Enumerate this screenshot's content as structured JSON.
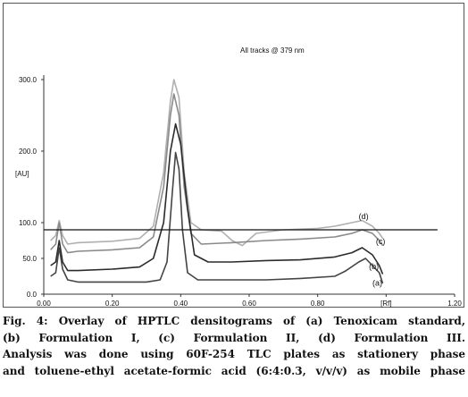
{
  "chart_data": {
    "type": "line",
    "annotation": "All tracks @ 379 nm",
    "ylabel": "[AU]",
    "xlabel": "[Rf]",
    "xlim": [
      0.0,
      1.2
    ],
    "ylim": [
      0,
      300
    ],
    "x_ticks": [
      0.0,
      0.2,
      0.4,
      0.6,
      0.8,
      1.0,
      1.2
    ],
    "x_tick_labels": [
      "0.00",
      "0.20",
      "0.40",
      "0.60",
      "0.80",
      "",
      "1.20"
    ],
    "y_ticks": [
      0,
      50,
      100,
      200,
      300
    ],
    "y_tick_labels": [
      "0.0",
      "50.0",
      "100.0",
      "200.0",
      "300.0"
    ],
    "hline_y": 90,
    "series": [
      {
        "name": "(a)",
        "color": "#444444",
        "points": [
          [
            0.02,
            25
          ],
          [
            0.035,
            30
          ],
          [
            0.045,
            65
          ],
          [
            0.055,
            35
          ],
          [
            0.07,
            20
          ],
          [
            0.1,
            17
          ],
          [
            0.2,
            17
          ],
          [
            0.3,
            17
          ],
          [
            0.34,
            20
          ],
          [
            0.36,
            45
          ],
          [
            0.375,
            140
          ],
          [
            0.385,
            198
          ],
          [
            0.395,
            175
          ],
          [
            0.405,
            90
          ],
          [
            0.42,
            30
          ],
          [
            0.45,
            20
          ],
          [
            0.55,
            20
          ],
          [
            0.65,
            20
          ],
          [
            0.75,
            22
          ],
          [
            0.85,
            25
          ],
          [
            0.88,
            32
          ],
          [
            0.92,
            45
          ],
          [
            0.94,
            50
          ],
          [
            0.96,
            40
          ],
          [
            0.98,
            30
          ],
          [
            0.99,
            15
          ]
        ]
      },
      {
        "name": "(b)",
        "color": "#2b2b2b",
        "points": [
          [
            0.02,
            40
          ],
          [
            0.035,
            45
          ],
          [
            0.045,
            75
          ],
          [
            0.055,
            45
          ],
          [
            0.07,
            33
          ],
          [
            0.1,
            33
          ],
          [
            0.2,
            35
          ],
          [
            0.28,
            38
          ],
          [
            0.32,
            50
          ],
          [
            0.35,
            100
          ],
          [
            0.37,
            200
          ],
          [
            0.385,
            238
          ],
          [
            0.4,
            210
          ],
          [
            0.42,
            120
          ],
          [
            0.44,
            55
          ],
          [
            0.48,
            45
          ],
          [
            0.55,
            45
          ],
          [
            0.65,
            47
          ],
          [
            0.75,
            48
          ],
          [
            0.85,
            52
          ],
          [
            0.9,
            58
          ],
          [
            0.93,
            65
          ],
          [
            0.96,
            55
          ],
          [
            0.98,
            40
          ],
          [
            0.99,
            28
          ]
        ]
      },
      {
        "name": "(c)",
        "color": "#8a8a8a",
        "points": [
          [
            0.02,
            62
          ],
          [
            0.035,
            70
          ],
          [
            0.045,
            100
          ],
          [
            0.055,
            70
          ],
          [
            0.07,
            58
          ],
          [
            0.1,
            60
          ],
          [
            0.2,
            62
          ],
          [
            0.28,
            65
          ],
          [
            0.32,
            80
          ],
          [
            0.35,
            150
          ],
          [
            0.37,
            250
          ],
          [
            0.38,
            280
          ],
          [
            0.395,
            250
          ],
          [
            0.41,
            150
          ],
          [
            0.43,
            85
          ],
          [
            0.46,
            70
          ],
          [
            0.55,
            72
          ],
          [
            0.65,
            75
          ],
          [
            0.75,
            77
          ],
          [
            0.85,
            80
          ],
          [
            0.9,
            85
          ],
          [
            0.93,
            90
          ],
          [
            0.96,
            85
          ],
          [
            0.98,
            75
          ],
          [
            0.99,
            68
          ]
        ]
      },
      {
        "name": "(d)",
        "color": "#b0b0b0",
        "points": [
          [
            0.02,
            75
          ],
          [
            0.035,
            82
          ],
          [
            0.045,
            103
          ],
          [
            0.055,
            82
          ],
          [
            0.07,
            70
          ],
          [
            0.1,
            72
          ],
          [
            0.2,
            74
          ],
          [
            0.28,
            78
          ],
          [
            0.32,
            95
          ],
          [
            0.35,
            170
          ],
          [
            0.37,
            270
          ],
          [
            0.38,
            300
          ],
          [
            0.395,
            275
          ],
          [
            0.41,
            170
          ],
          [
            0.43,
            100
          ],
          [
            0.46,
            90
          ],
          [
            0.52,
            88
          ],
          [
            0.55,
            75
          ],
          [
            0.58,
            68
          ],
          [
            0.62,
            85
          ],
          [
            0.7,
            90
          ],
          [
            0.8,
            92
          ],
          [
            0.85,
            95
          ],
          [
            0.9,
            100
          ],
          [
            0.93,
            103
          ],
          [
            0.96,
            95
          ],
          [
            0.98,
            85
          ],
          [
            0.99,
            78
          ]
        ]
      }
    ]
  },
  "caption": {
    "fig_label": "Fig. 4:",
    "line1_rest": " Overlay of HPTLC densitograms of (a) Tenoxicam standard,",
    "line2": "(b) Formulation I, (c) Formulation II, (d) Formulation III.",
    "line3": "Analysis was done using 60F-254 TLC plates as stationery phase",
    "line4": "and toluene-ethyl acetate-formic acid (6:4:0.3, v/v/v) as mobile phase"
  }
}
